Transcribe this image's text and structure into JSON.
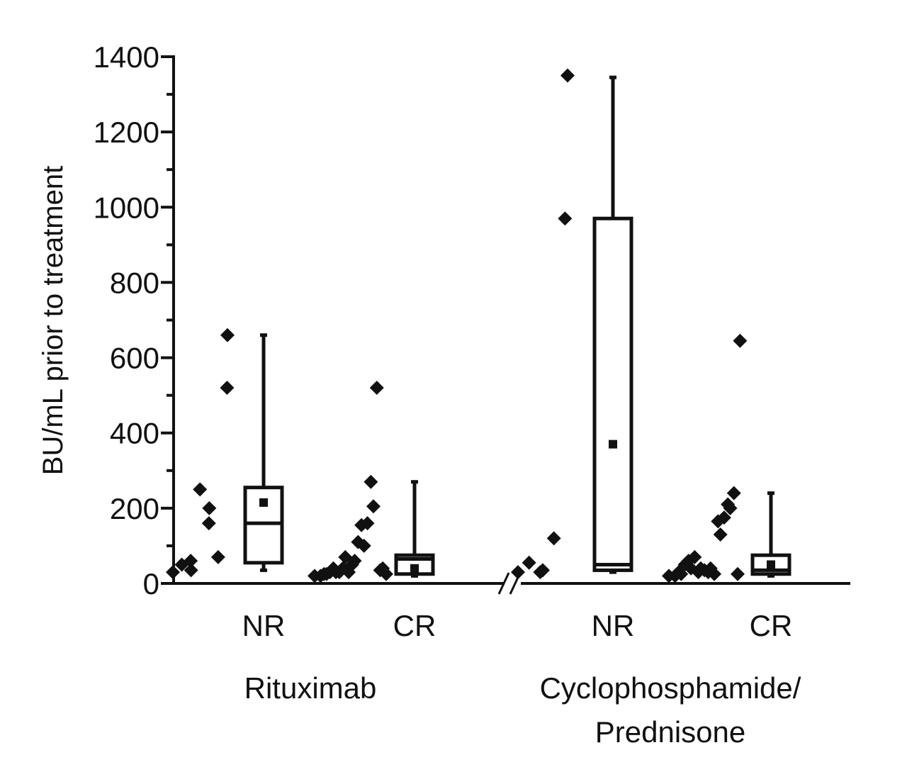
{
  "chart_data": {
    "type": "box",
    "ylabel": "BU/mL prior to treatment",
    "ylim": [
      0,
      1400
    ],
    "yticks": [
      0,
      200,
      400,
      600,
      800,
      1000,
      1200,
      1400
    ],
    "axis_break": true,
    "groups": [
      {
        "label": "Rituximab",
        "categories": [
          {
            "label": "NR",
            "points": [
              30,
              50,
              60,
              35,
              250,
              160,
              200,
              70,
              520,
              660
            ],
            "box": {
              "whisker_low": 35,
              "q1": 55,
              "median": 160,
              "q3": 255,
              "whisker_high": 660,
              "mean": 215
            }
          },
          {
            "label": "CR",
            "points": [
              20,
              20,
              25,
              25,
              30,
              30,
              40,
              30,
              70,
              40,
              30,
              60,
              50,
              110,
              100,
              155,
              160,
              205,
              270,
              520,
              40,
              35,
              25
            ],
            "box": {
              "whisker_low": 20,
              "q1": 25,
              "median": 65,
              "q3": 75,
              "whisker_high": 270,
              "mean": 40
            }
          }
        ]
      },
      {
        "label": "Cyclophosphamide/ Prednisone",
        "label_lines": [
          "Cyclophosphamide/",
          "Prednisone"
        ],
        "categories": [
          {
            "label": "NR",
            "points": [
              30,
              55,
              30,
              35,
              120,
              970,
              1350
            ],
            "box": {
              "whisker_low": 30,
              "q1": 35,
              "median": 50,
              "q3": 970,
              "whisker_high": 1345,
              "mean": 370
            }
          },
          {
            "label": "CR",
            "points": [
              20,
              20,
              25,
              30,
              50,
              40,
              60,
              70,
              40,
              30,
              35,
              40,
              30,
              25,
              130,
              165,
              175,
              200,
              210,
              240,
              645,
              25
            ],
            "box": {
              "whisker_low": 20,
              "q1": 25,
              "median": 35,
              "q3": 75,
              "whisker_high": 240,
              "mean": 50
            }
          }
        ]
      }
    ]
  }
}
